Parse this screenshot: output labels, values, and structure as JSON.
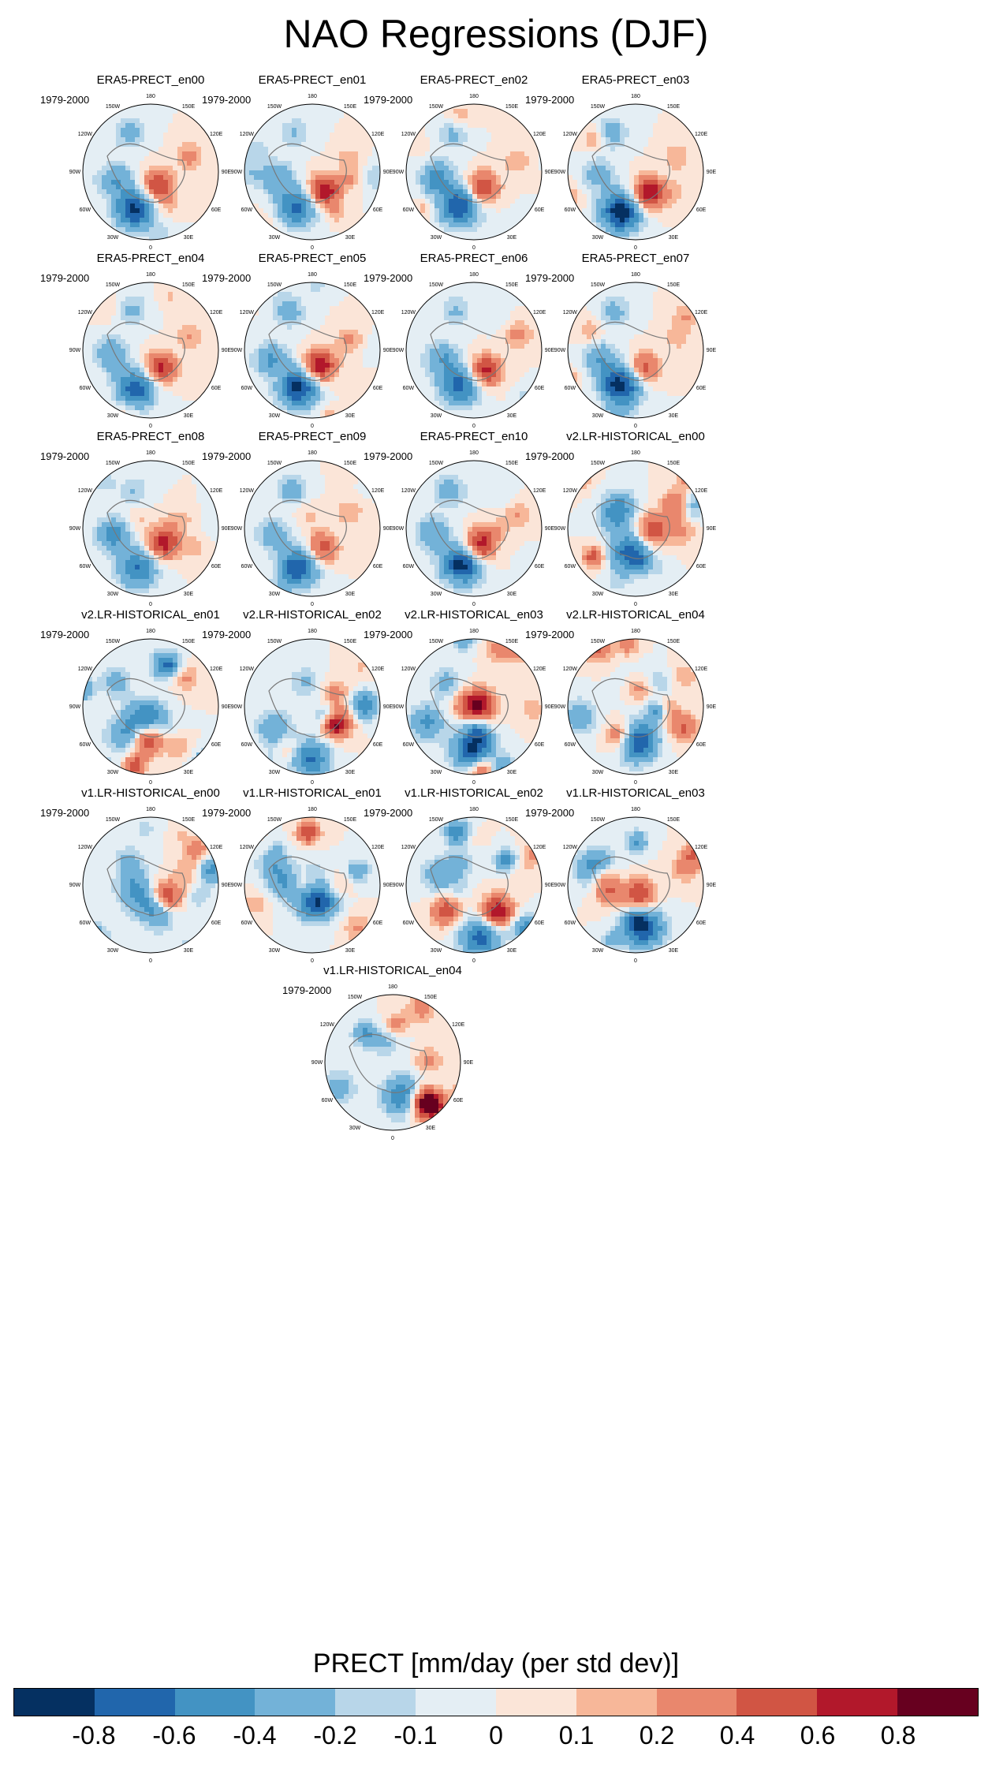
{
  "title": "NAO Regressions (DJF)",
  "period_label": "1979-2000",
  "panels": [
    "ERA5-PRECT_en00",
    "ERA5-PRECT_en01",
    "ERA5-PRECT_en02",
    "ERA5-PRECT_en03",
    "ERA5-PRECT_en04",
    "ERA5-PRECT_en05",
    "ERA5-PRECT_en06",
    "ERA5-PRECT_en07",
    "ERA5-PRECT_en08",
    "ERA5-PRECT_en09",
    "ERA5-PRECT_en10",
    "v2.LR-HISTORICAL_en00",
    "v2.LR-HISTORICAL_en01",
    "v2.LR-HISTORICAL_en02",
    "v2.LR-HISTORICAL_en03",
    "v2.LR-HISTORICAL_en04",
    "v1.LR-HISTORICAL_en00",
    "v1.LR-HISTORICAL_en01",
    "v1.LR-HISTORICAL_en02",
    "v1.LR-HISTORICAL_en03",
    "v1.LR-HISTORICAL_en04"
  ],
  "longitude_labels": [
    "180",
    "150E",
    "120E",
    "90E",
    "60E",
    "30E",
    "0",
    "30W",
    "60W",
    "90W",
    "120W",
    "150W"
  ],
  "colorbar": {
    "title": "PRECT [mm/day (per std dev)]",
    "tick_labels": [
      "-0.8",
      "-0.6",
      "-0.4",
      "-0.2",
      "-0.1",
      "0",
      "0.1",
      "0.2",
      "0.4",
      "0.6",
      "0.8"
    ],
    "colors": [
      "#053061",
      "#2166ac",
      "#4393c3",
      "#73b2d8",
      "#b8d6e9",
      "#e4eef4",
      "#fbe5d8",
      "#f7b799",
      "#e9876d",
      "#d15544",
      "#b2182b",
      "#67001f"
    ]
  }
}
